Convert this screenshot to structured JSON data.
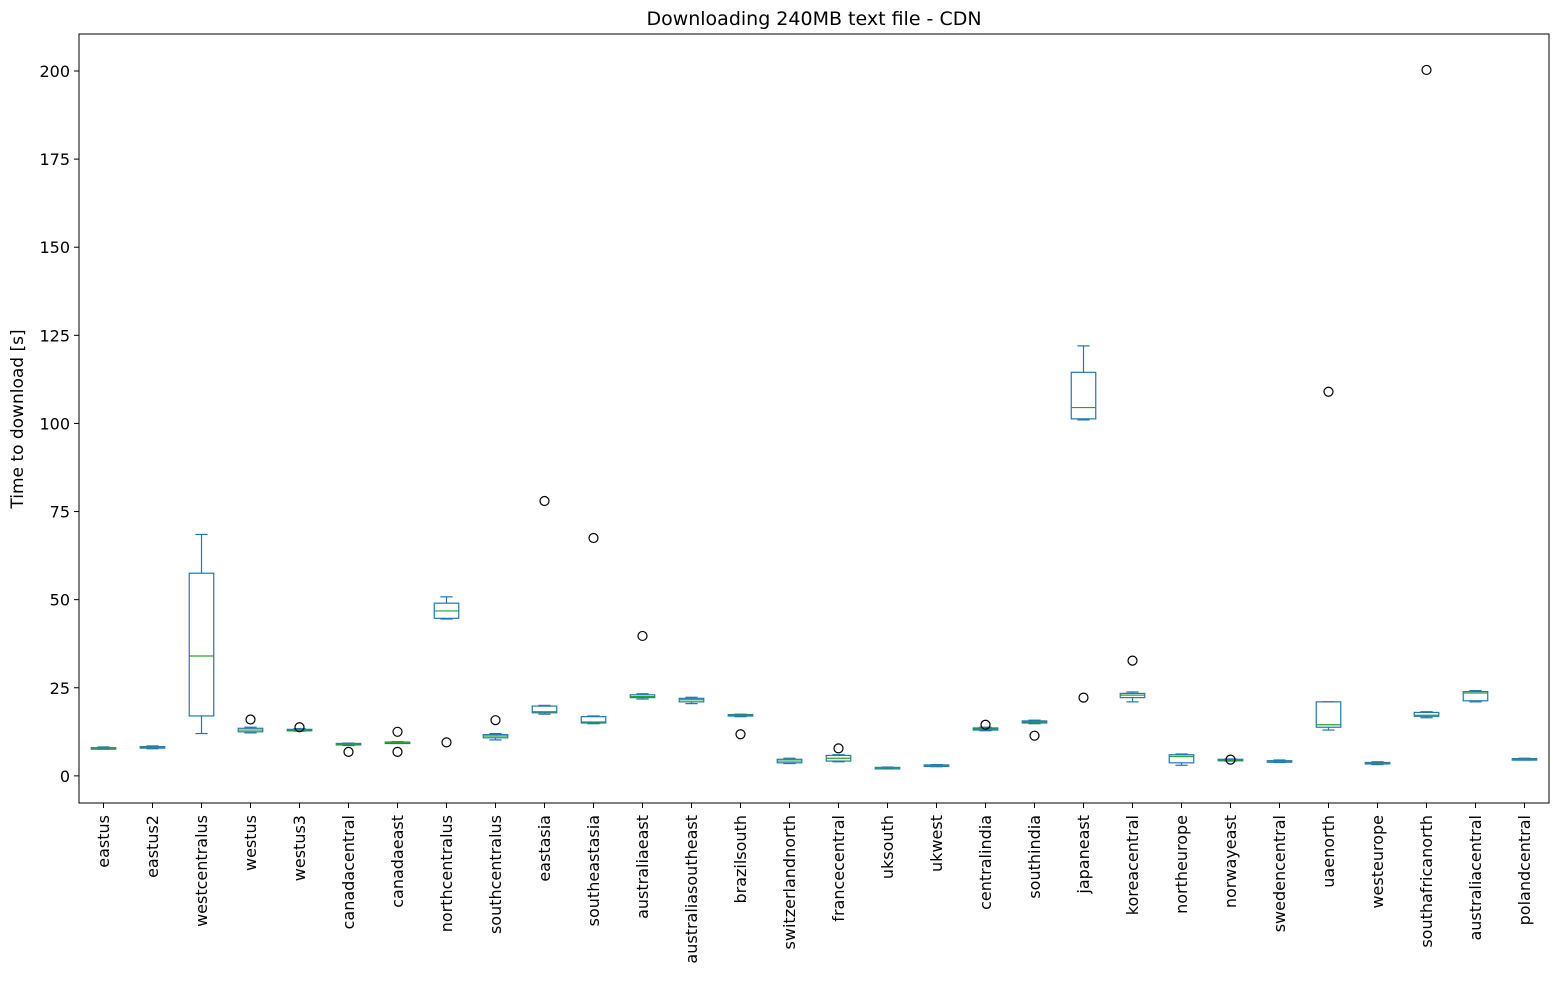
{
  "chart_data": {
    "type": "box",
    "title": "Downloading 240MB text file - CDN",
    "xlabel": "",
    "ylabel": "Time to download [s]",
    "ylim": [
      -7.7,
      210.5
    ],
    "yticks": [
      0,
      25,
      50,
      75,
      100,
      125,
      150,
      175,
      200
    ],
    "grid": false,
    "colors": {
      "box": "#1f77b4",
      "median": "#2ca02c",
      "flier": "#000000"
    },
    "categories": [
      "eastus",
      "eastus2",
      "westcentralus",
      "westus",
      "westus3",
      "canadacentral",
      "canadaeast",
      "northcentralus",
      "southcentralus",
      "eastasia",
      "southeastasia",
      "australiaeast",
      "australiasoutheast",
      "brazilsouth",
      "switzerlandnorth",
      "francecentral",
      "uksouth",
      "ukwest",
      "centralindia",
      "southindia",
      "japaneast",
      "koreacentral",
      "northeurope",
      "norwayeast",
      "swedencentral",
      "uaenorth",
      "westeurope",
      "southafricanorth",
      "australiacentral",
      "polandcentral"
    ],
    "boxes": [
      {
        "category": "eastus",
        "whislo": 7.6,
        "q1": 7.8,
        "med": 7.9,
        "q3": 8.0,
        "whishi": 8.2,
        "fliers": []
      },
      {
        "category": "eastus2",
        "whislo": 7.7,
        "q1": 7.9,
        "med": 8.1,
        "q3": 8.3,
        "whishi": 8.5,
        "fliers": []
      },
      {
        "category": "westcentralus",
        "whislo": 12.0,
        "q1": 17.0,
        "med": 34.0,
        "q3": 57.5,
        "whishi": 68.5,
        "fliers": []
      },
      {
        "category": "westus",
        "whislo": 12.2,
        "q1": 12.5,
        "med": 13.0,
        "q3": 13.5,
        "whishi": 13.8,
        "fliers": [
          16.0
        ]
      },
      {
        "category": "westus3",
        "whislo": 12.7,
        "q1": 12.9,
        "med": 13.0,
        "q3": 13.2,
        "whishi": 13.4,
        "fliers": [
          13.8
        ]
      },
      {
        "category": "canadacentral",
        "whislo": 8.6,
        "q1": 8.8,
        "med": 9.0,
        "q3": 9.2,
        "whishi": 9.3,
        "fliers": [
          6.8
        ]
      },
      {
        "category": "canadaeast",
        "whislo": 9.2,
        "q1": 9.3,
        "med": 9.5,
        "q3": 9.6,
        "whishi": 9.7,
        "fliers": [
          12.5,
          6.8
        ]
      },
      {
        "category": "northcentralus",
        "whislo": 44.5,
        "q1": 44.7,
        "med": 46.8,
        "q3": 49.0,
        "whishi": 50.8,
        "fliers": [
          9.5
        ]
      },
      {
        "category": "southcentralus",
        "whislo": 10.2,
        "q1": 10.8,
        "med": 11.3,
        "q3": 11.7,
        "whishi": 12.0,
        "fliers": [
          15.8
        ]
      },
      {
        "category": "eastasia",
        "whislo": 17.5,
        "q1": 17.9,
        "med": 18.2,
        "q3": 19.8,
        "whishi": 20.0,
        "fliers": [
          78.0
        ]
      },
      {
        "category": "southeastasia",
        "whislo": 14.8,
        "q1": 15.0,
        "med": 15.3,
        "q3": 16.8,
        "whishi": 17.0,
        "fliers": [
          67.5
        ]
      },
      {
        "category": "australiaeast",
        "whislo": 21.8,
        "q1": 22.2,
        "med": 22.5,
        "q3": 23.0,
        "whishi": 23.3,
        "fliers": [
          39.7
        ]
      },
      {
        "category": "australiasoutheast",
        "whislo": 20.5,
        "q1": 21.0,
        "med": 21.6,
        "q3": 22.0,
        "whishi": 22.3,
        "fliers": []
      },
      {
        "category": "brazilsouth",
        "whislo": 16.8,
        "q1": 17.0,
        "med": 17.2,
        "q3": 17.4,
        "whishi": 17.5,
        "fliers": [
          11.8
        ]
      },
      {
        "category": "switzerlandnorth",
        "whislo": 3.5,
        "q1": 3.7,
        "med": 4.2,
        "q3": 4.7,
        "whishi": 5.0,
        "fliers": []
      },
      {
        "category": "francecentral",
        "whislo": 4.0,
        "q1": 4.2,
        "med": 5.0,
        "q3": 5.8,
        "whishi": 6.0,
        "fliers": [
          7.8
        ]
      },
      {
        "category": "uksouth",
        "whislo": 2.1,
        "q1": 2.2,
        "med": 2.3,
        "q3": 2.4,
        "whishi": 2.5,
        "fliers": []
      },
      {
        "category": "ukwest",
        "whislo": 2.6,
        "q1": 2.7,
        "med": 2.9,
        "q3": 3.1,
        "whishi": 3.2,
        "fliers": []
      },
      {
        "category": "centralindia",
        "whislo": 12.8,
        "q1": 13.0,
        "med": 13.3,
        "q3": 13.6,
        "whishi": 13.8,
        "fliers": [
          14.5
        ]
      },
      {
        "category": "southindia",
        "whislo": 14.8,
        "q1": 15.0,
        "med": 15.3,
        "q3": 15.6,
        "whishi": 15.8,
        "fliers": [
          11.4
        ]
      },
      {
        "category": "japaneast",
        "whislo": 101.0,
        "q1": 101.3,
        "med": 104.5,
        "q3": 114.5,
        "whishi": 122.0,
        "fliers": [
          22.2
        ]
      },
      {
        "category": "koreacentral",
        "whislo": 21.0,
        "q1": 22.2,
        "med": 22.9,
        "q3": 23.4,
        "whishi": 23.8,
        "fliers": [
          32.7
        ]
      },
      {
        "category": "northeurope",
        "whislo": 3.0,
        "q1": 3.7,
        "med": 5.5,
        "q3": 6.0,
        "whishi": 6.2,
        "fliers": []
      },
      {
        "category": "norwayeast",
        "whislo": 4.2,
        "q1": 4.3,
        "med": 4.5,
        "q3": 4.7,
        "whishi": 4.8,
        "fliers": [
          4.6
        ]
      },
      {
        "category": "swedencentral",
        "whislo": 3.8,
        "q1": 4.0,
        "med": 4.1,
        "q3": 4.3,
        "whishi": 4.5,
        "fliers": []
      },
      {
        "category": "uaenorth",
        "whislo": 13.0,
        "q1": 13.8,
        "med": 14.5,
        "q3": 21.0,
        "whishi": 21.0,
        "fliers": [
          109.0
        ]
      },
      {
        "category": "westeurope",
        "whislo": 3.2,
        "q1": 3.4,
        "med": 3.6,
        "q3": 3.8,
        "whishi": 4.0,
        "fliers": []
      },
      {
        "category": "southafricanorth",
        "whislo": 16.5,
        "q1": 16.9,
        "med": 17.2,
        "q3": 18.0,
        "whishi": 18.2,
        "fliers": [
          200.3
        ]
      },
      {
        "category": "australiacentral",
        "whislo": 21.0,
        "q1": 21.3,
        "med": 23.5,
        "q3": 23.9,
        "whishi": 24.2,
        "fliers": []
      },
      {
        "category": "polandcentral",
        "whislo": 4.5,
        "q1": 4.6,
        "med": 4.7,
        "q3": 4.9,
        "whishi": 5.0,
        "fliers": []
      }
    ]
  }
}
